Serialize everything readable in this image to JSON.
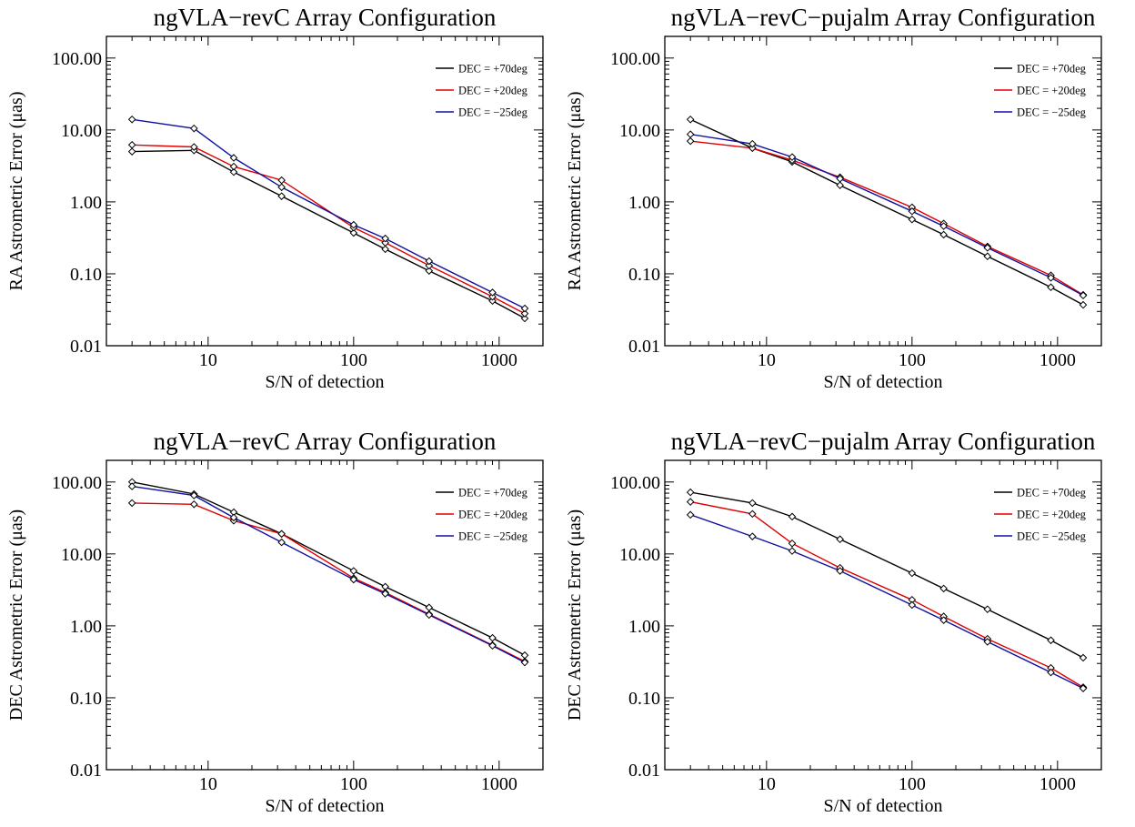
{
  "figure": {
    "series_colors": {
      "DEC = +70deg": "#000000",
      "DEC = +20deg": "#e00000",
      "DEC = −25deg": "#1010a0"
    }
  },
  "chart_data": [
    {
      "type": "line",
      "title": "ngVLA−revC Array Configuration",
      "xlabel": "S/N of detection",
      "ylabel": "RA Astrometric Error (μas)",
      "xscale": "log",
      "yscale": "log",
      "xlim": [
        2,
        2000
      ],
      "ylim": [
        0.01,
        200
      ],
      "xticks": [
        10,
        100,
        1000
      ],
      "xtick_labels": [
        "10",
        "100",
        "1000"
      ],
      "yticks": [
        0.01,
        0.1,
        1,
        10,
        100
      ],
      "ytick_labels": [
        "0.01",
        "0.10",
        "1.00",
        "10.00",
        "100.00"
      ],
      "legend_position": "top-right",
      "x": [
        3,
        8,
        15,
        32,
        100,
        165,
        330,
        900,
        1500
      ],
      "series": [
        {
          "name": "DEC = +70deg",
          "color": "#000000",
          "values": [
            5.0,
            5.2,
            2.6,
            1.2,
            0.37,
            0.22,
            0.11,
            0.042,
            0.024
          ]
        },
        {
          "name": "DEC = +20deg",
          "color": "#e00000",
          "values": [
            6.2,
            5.8,
            3.1,
            2.0,
            0.44,
            0.27,
            0.13,
            0.048,
            0.028
          ]
        },
        {
          "name": "DEC = −25deg",
          "color": "#1010a0",
          "values": [
            14.0,
            10.5,
            4.1,
            1.6,
            0.48,
            0.31,
            0.15,
            0.055,
            0.033
          ]
        }
      ]
    },
    {
      "type": "line",
      "title": "ngVLA−revC−pujalm Array Configuration",
      "xlabel": "S/N of detection",
      "ylabel": "RA Astrometric Error (μas)",
      "xscale": "log",
      "yscale": "log",
      "xlim": [
        2,
        2000
      ],
      "ylim": [
        0.01,
        200
      ],
      "xticks": [
        10,
        100,
        1000
      ],
      "xtick_labels": [
        "10",
        "100",
        "1000"
      ],
      "yticks": [
        0.01,
        0.1,
        1,
        10,
        100
      ],
      "ytick_labels": [
        "0.01",
        "0.10",
        "1.00",
        "10.00",
        "100.00"
      ],
      "legend_position": "top-right",
      "x": [
        3,
        8,
        15,
        32,
        100,
        165,
        330,
        900,
        1500
      ],
      "series": [
        {
          "name": "DEC = +70deg",
          "color": "#000000",
          "values": [
            14.0,
            5.6,
            3.6,
            1.7,
            0.57,
            0.35,
            0.175,
            0.065,
            0.037
          ]
        },
        {
          "name": "DEC = +20deg",
          "color": "#e00000",
          "values": [
            7.0,
            5.6,
            3.8,
            2.2,
            0.84,
            0.5,
            0.24,
            0.095,
            0.051
          ]
        },
        {
          "name": "DEC = −25deg",
          "color": "#1010a0",
          "values": [
            8.7,
            6.4,
            4.2,
            2.1,
            0.74,
            0.46,
            0.23,
            0.088,
            0.05
          ]
        }
      ]
    },
    {
      "type": "line",
      "title": "ngVLA−revC Array Configuration",
      "xlabel": "S/N of detection",
      "ylabel": "DEC Astrometric Error (μas)",
      "xscale": "log",
      "yscale": "log",
      "xlim": [
        2,
        2000
      ],
      "ylim": [
        0.01,
        200
      ],
      "xticks": [
        10,
        100,
        1000
      ],
      "xtick_labels": [
        "10",
        "100",
        "1000"
      ],
      "yticks": [
        0.01,
        0.1,
        1,
        10,
        100
      ],
      "ytick_labels": [
        "0.01",
        "0.10",
        "1.00",
        "10.00",
        "100.00"
      ],
      "legend_position": "top-right",
      "x": [
        3,
        8,
        15,
        32,
        100,
        165,
        330,
        900,
        1500
      ],
      "series": [
        {
          "name": "DEC = +70deg",
          "color": "#000000",
          "values": [
            100,
            68,
            38,
            19,
            5.8,
            3.5,
            1.8,
            0.68,
            0.39
          ]
        },
        {
          "name": "DEC = +20deg",
          "color": "#e00000",
          "values": [
            51,
            49,
            29,
            19,
            4.6,
            2.9,
            1.45,
            0.54,
            0.32
          ]
        },
        {
          "name": "DEC = −25deg",
          "color": "#1010a0",
          "values": [
            87,
            65,
            32,
            14.5,
            4.4,
            2.8,
            1.42,
            0.53,
            0.31
          ]
        }
      ]
    },
    {
      "type": "line",
      "title": "ngVLA−revC−pujalm Array Configuration",
      "xlabel": "S/N of detection",
      "ylabel": "DEC Astrometric Error (μas)",
      "xscale": "log",
      "yscale": "log",
      "xlim": [
        2,
        2000
      ],
      "ylim": [
        0.01,
        200
      ],
      "xticks": [
        10,
        100,
        1000
      ],
      "xtick_labels": [
        "10",
        "100",
        "1000"
      ],
      "yticks": [
        0.01,
        0.1,
        1,
        10,
        100
      ],
      "ytick_labels": [
        "0.01",
        "0.10",
        "1.00",
        "10.00",
        "100.00"
      ],
      "legend_position": "top-right",
      "x": [
        3,
        8,
        15,
        32,
        100,
        165,
        330,
        900,
        1500
      ],
      "series": [
        {
          "name": "DEC = +70deg",
          "color": "#000000",
          "values": [
            72,
            51,
            33,
            16,
            5.4,
            3.3,
            1.7,
            0.63,
            0.36
          ]
        },
        {
          "name": "DEC = +20deg",
          "color": "#e00000",
          "values": [
            53,
            36,
            14,
            6.4,
            2.3,
            1.35,
            0.66,
            0.26,
            0.14
          ]
        },
        {
          "name": "DEC = −25deg",
          "color": "#1010a0",
          "values": [
            35,
            17.5,
            11,
            5.8,
            1.95,
            1.2,
            0.6,
            0.225,
            0.135
          ]
        }
      ]
    }
  ]
}
